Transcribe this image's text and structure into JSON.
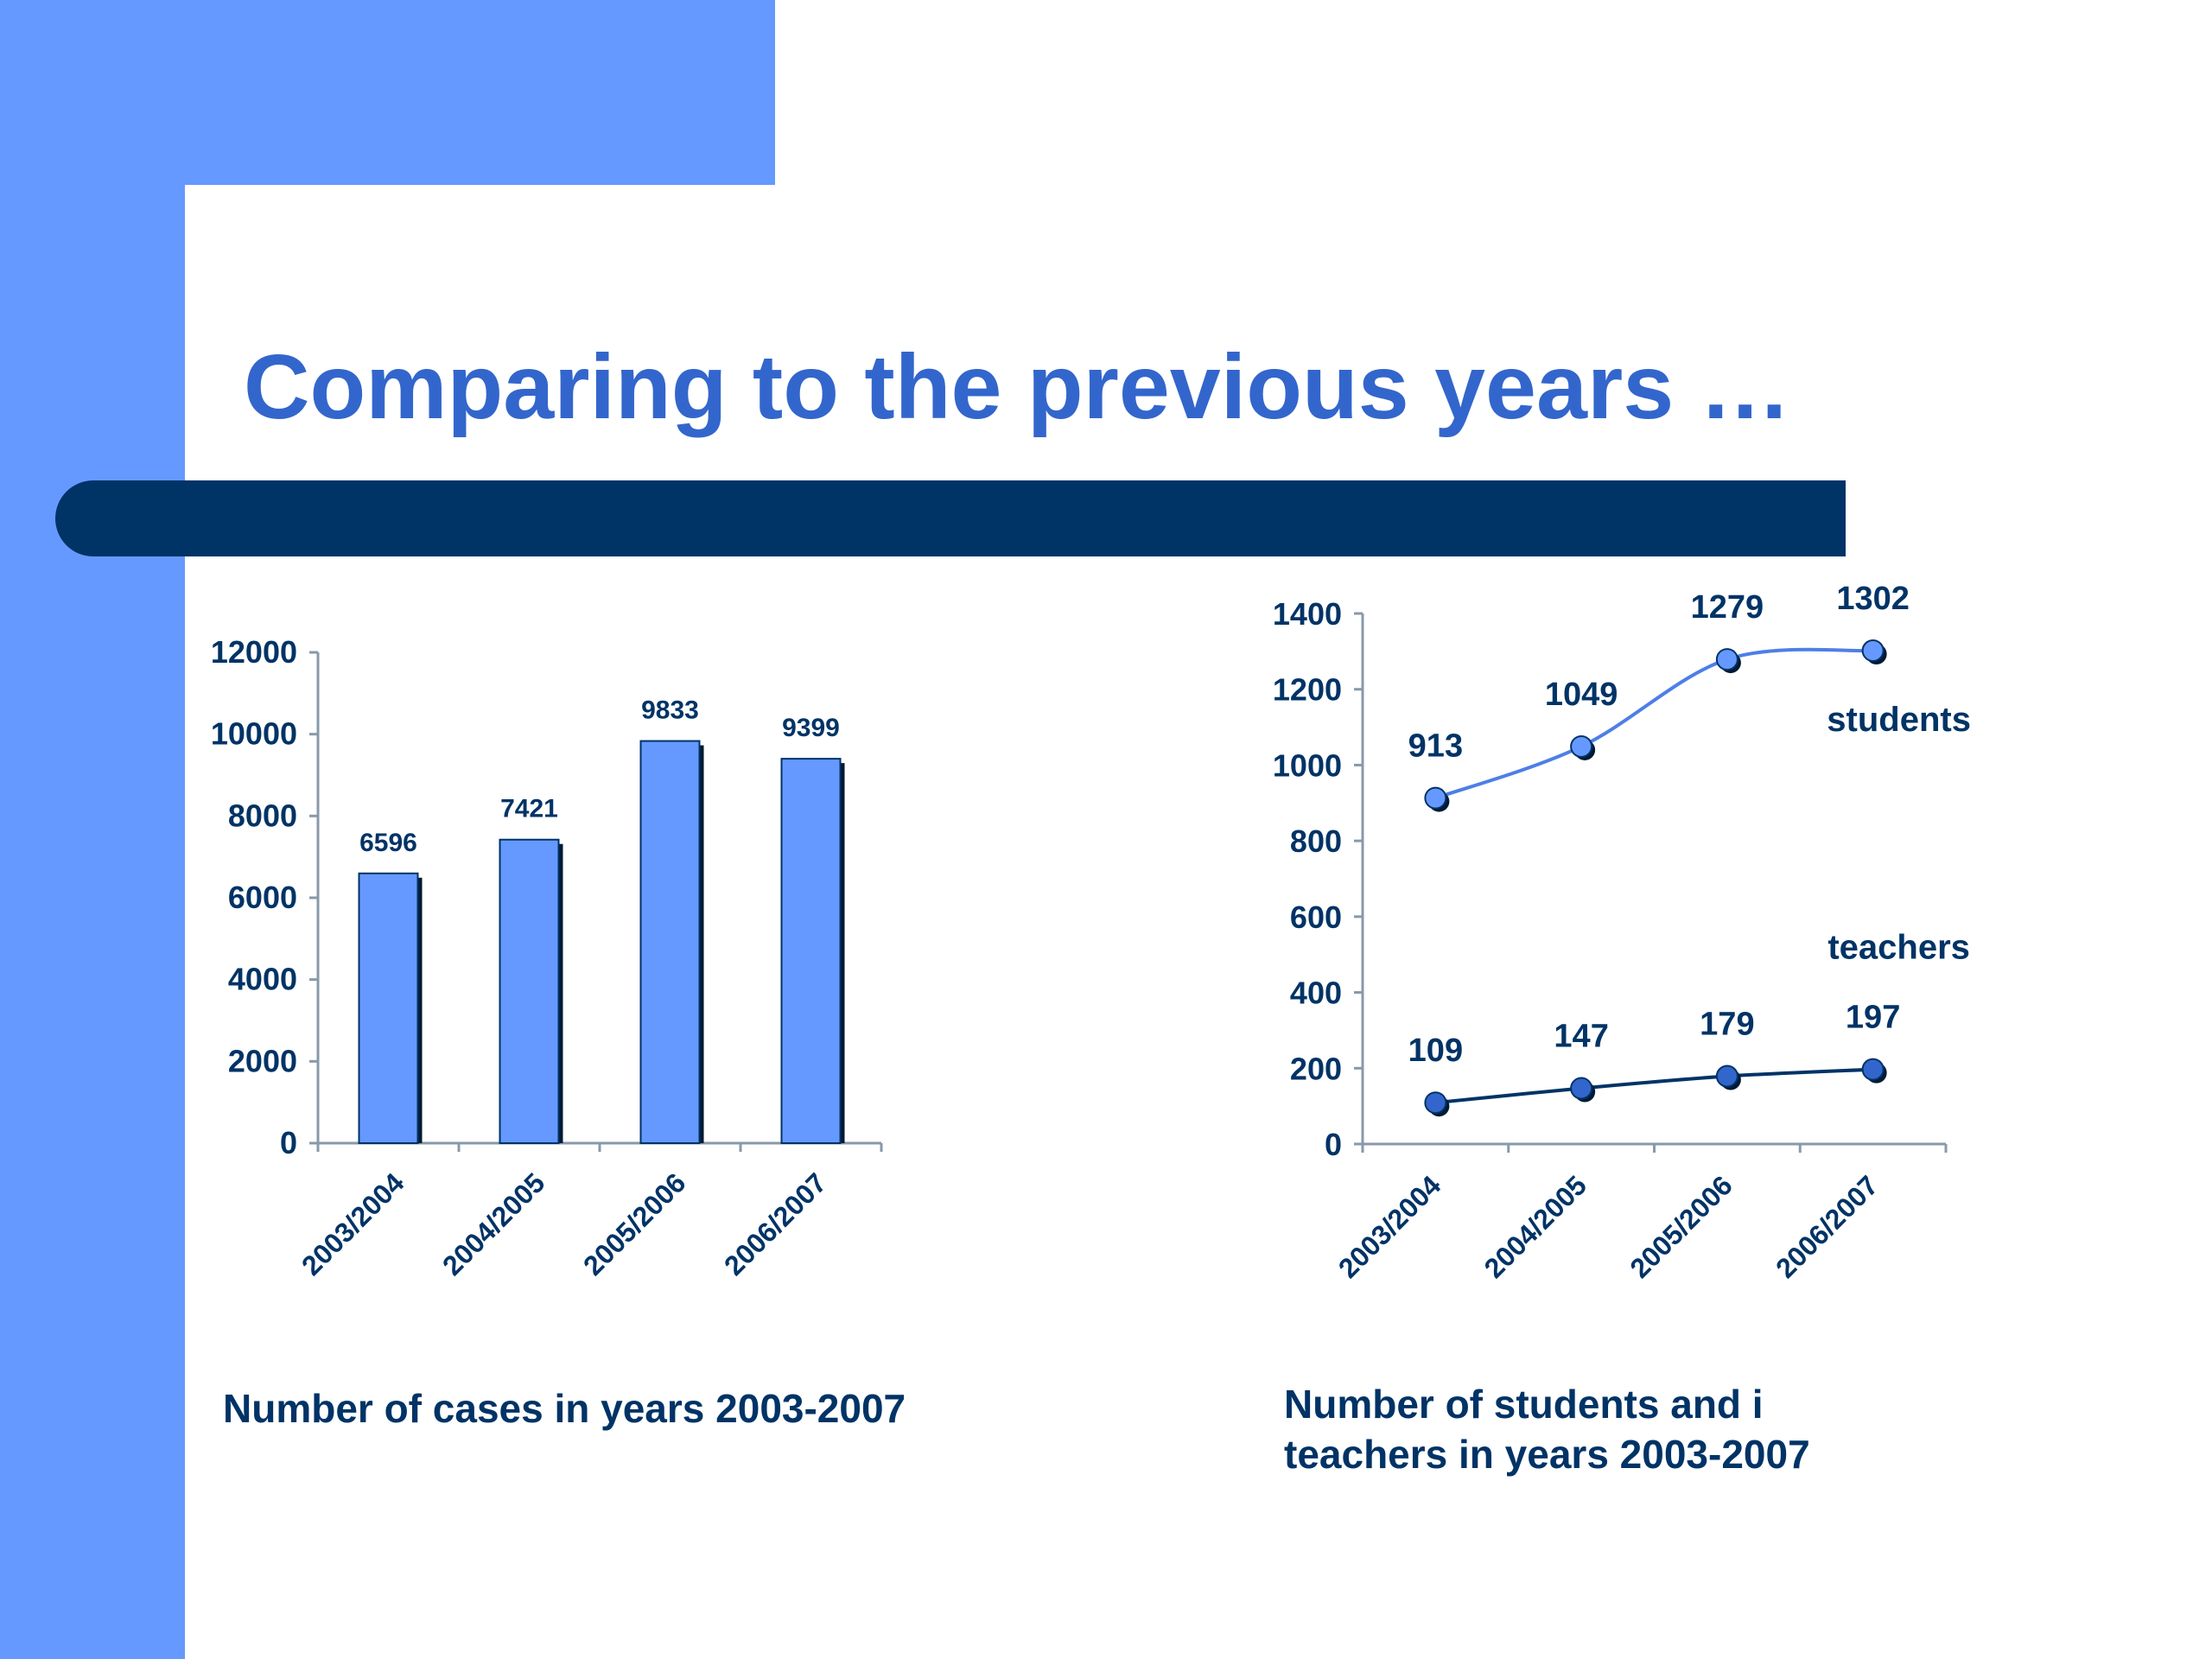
{
  "slide": {
    "title": "Comparing to the previous years …",
    "caption_left": "Number of cases in years 2003-2007",
    "caption_right_line1": "Number of students and i",
    "caption_right_line2": "teachers in years 2003-2007"
  },
  "colors": {
    "background": "#ffffff",
    "accent": "#6699ff",
    "title": "#3366cc",
    "dark": "#003366",
    "students_line": "#4d7fe6"
  },
  "chart_data": [
    {
      "type": "bar",
      "categories": [
        "2003/2004",
        "2004/2005",
        "2005/2006",
        "2006/2007"
      ],
      "values": [
        6596,
        7421,
        9833,
        9399
      ],
      "yticks": [
        0,
        2000,
        4000,
        6000,
        8000,
        10000,
        12000
      ],
      "ylim": [
        0,
        12000
      ],
      "title": "",
      "xlabel": "",
      "ylabel": "",
      "grid": false,
      "bar_color": "#6699ff",
      "data_labels": true
    },
    {
      "type": "line",
      "categories": [
        "2003/2004",
        "2004/2005",
        "2005/2006",
        "2006/2007"
      ],
      "series": [
        {
          "name": "students",
          "values": [
            913,
            1049,
            1279,
            1302
          ],
          "color": "#4d7fe6",
          "marker": "#6699ff"
        },
        {
          "name": "teachers",
          "values": [
            109,
            147,
            179,
            197
          ],
          "color": "#003366",
          "marker": "#3366cc"
        }
      ],
      "yticks": [
        0,
        200,
        400,
        600,
        800,
        1000,
        1200,
        1400
      ],
      "ylim": [
        0,
        1400
      ],
      "title": "",
      "xlabel": "",
      "ylabel": "",
      "grid": false,
      "data_labels": true
    }
  ]
}
